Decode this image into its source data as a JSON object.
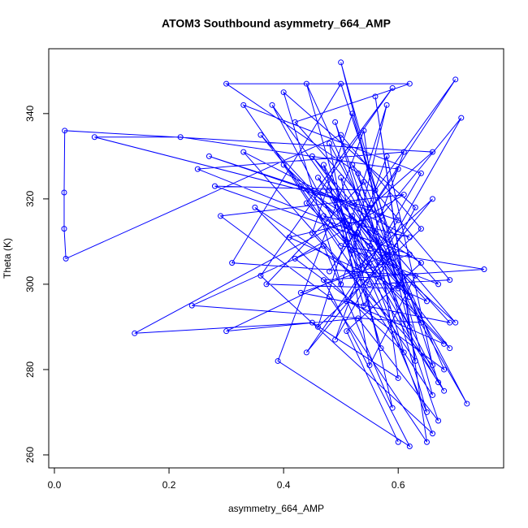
{
  "chart_data": {
    "type": "line",
    "markers": true,
    "color": "#0000ff",
    "title": "ATOM3 Southbound asymmetry_664_AMP",
    "x_label": "asymmetry_664_AMP",
    "y_label": "Theta (K)",
    "xlim": [
      -0.0099,
      0.784
    ],
    "ylim": [
      256.95,
      355.2
    ],
    "xticks": [
      {
        "value": 0,
        "label": "0.0"
      },
      0.2,
      0.4,
      0.6
    ],
    "yticks": [
      260,
      280,
      300,
      320,
      340
    ],
    "x": [
      0.55,
      0.48,
      0.62,
      0.52,
      0.45,
      0.66,
      0.58,
      0.5,
      0.4,
      0.63,
      0.54,
      0.47,
      0.68,
      0.51,
      0.36,
      0.6,
      0.44,
      0.57,
      0.49,
      0.65,
      0.53,
      0.3,
      0.62,
      0.42,
      0.67,
      0.52,
      0.58,
      0.46,
      0.64,
      0.5,
      0.02,
      0.017,
      0.017,
      0.018,
      0.66,
      0.55,
      0.07,
      0.22,
      0.6,
      0.48,
      0.7,
      0.56,
      0.28,
      0.62,
      0.43,
      0.69,
      0.52,
      0.14,
      0.45,
      0.6,
      0.54,
      0.39,
      0.62,
      0.47,
      0.75,
      0.5,
      0.33,
      0.64,
      0.51,
      0.68,
      0.44,
      0.59,
      0.36,
      0.66,
      0.53,
      0.25,
      0.61,
      0.49,
      0.71,
      0.57,
      0.41,
      0.65,
      0.46,
      0.67,
      0.5,
      0.31,
      0.63,
      0.55,
      0.48,
      0.72,
      0.52,
      0.27,
      0.6,
      0.44,
      0.66,
      0.53,
      0.38,
      0.62,
      0.5,
      0.59,
      0.47,
      0.24,
      0.64,
      0.52,
      0.69,
      0.55,
      0.35,
      0.61,
      0.49,
      0.67,
      0.53,
      0.3,
      0.58,
      0.45,
      0.7,
      0.51,
      0.4,
      0.63,
      0.56,
      0.65,
      0.48,
      0.29,
      0.61,
      0.42,
      0.68,
      0.54,
      0.37,
      0.6,
      0.5,
      0.66,
      0.52,
      0.33,
      0.62,
      0.47,
      0.69,
      0.55,
      0.43,
      0.64,
      0.51,
      0.6
    ],
    "values": [
      305,
      322,
      290,
      340,
      312,
      281,
      330,
      300,
      345,
      318,
      295,
      328,
      275,
      310,
      335,
      300,
      347,
      285,
      320,
      270,
      326,
      347,
      347,
      338,
      300,
      308,
      342,
      290,
      313,
      335,
      306,
      313,
      321.5,
      336,
      331,
      318,
      334.5,
      334.5,
      327,
      303,
      348,
      322,
      323,
      307,
      298,
      291,
      316,
      288.5,
      291,
      278,
      336,
      282,
      262,
      301,
      303.5,
      309,
      342,
      326,
      296,
      286,
      319,
      346,
      302,
      265,
      312,
      327,
      331,
      287,
      339,
      316,
      311,
      296,
      325,
      277,
      347,
      305,
      302,
      281,
      333,
      272,
      319,
      330,
      315,
      284,
      320,
      304,
      342,
      297,
      325,
      271,
      309,
      295,
      291,
      328,
      301,
      300,
      318,
      284,
      338,
      268,
      292,
      289,
      307,
      330,
      291,
      314,
      328,
      282,
      344,
      263,
      297,
      316,
      321,
      306,
      280,
      324,
      300,
      299,
      352,
      274,
      302,
      331,
      311,
      316,
      285,
      309,
      323,
      305,
      289,
      263
    ]
  }
}
